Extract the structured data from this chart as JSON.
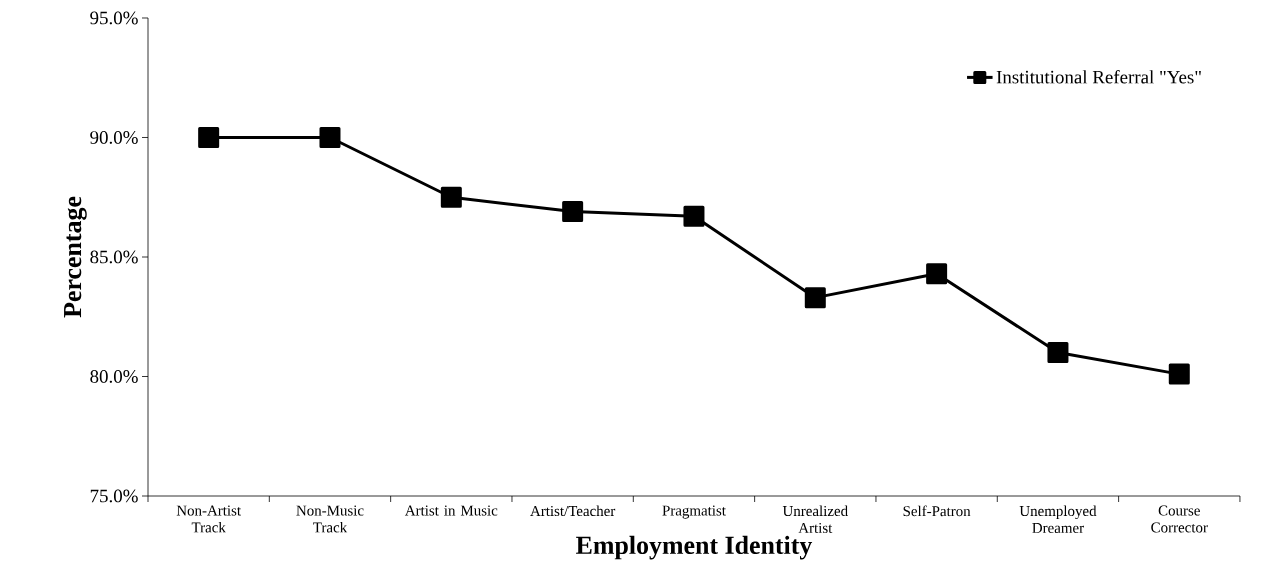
{
  "chart_data": {
    "type": "line",
    "xlabel": "Employment Identity",
    "ylabel": "Percentage",
    "categories": [
      "Non-Artist Track",
      "Non-Music Track",
      "Artist in Music",
      "Artist/Teacher",
      "Pragmatist",
      "Unrealized Artist",
      "Self-Patron",
      "Unemployed Dreamer",
      "Course Corrector"
    ],
    "series": [
      {
        "name": "Institutional Referral \"Yes\"",
        "color": "#000000",
        "values": [
          90.0,
          90.0,
          87.5,
          86.9,
          86.7,
          83.3,
          84.3,
          81.0,
          80.1
        ]
      }
    ],
    "ylim": [
      75,
      95
    ],
    "yticks": [
      {
        "value": 75,
        "label": "75.0%"
      },
      {
        "value": 80,
        "label": "80.0%"
      },
      {
        "value": 85,
        "label": "85.0%"
      },
      {
        "value": 90,
        "label": "90.0%"
      },
      {
        "value": 95,
        "label": "95.0%"
      }
    ],
    "grid": false,
    "legend": "top right",
    "marker": "square",
    "line_style": "solid"
  }
}
